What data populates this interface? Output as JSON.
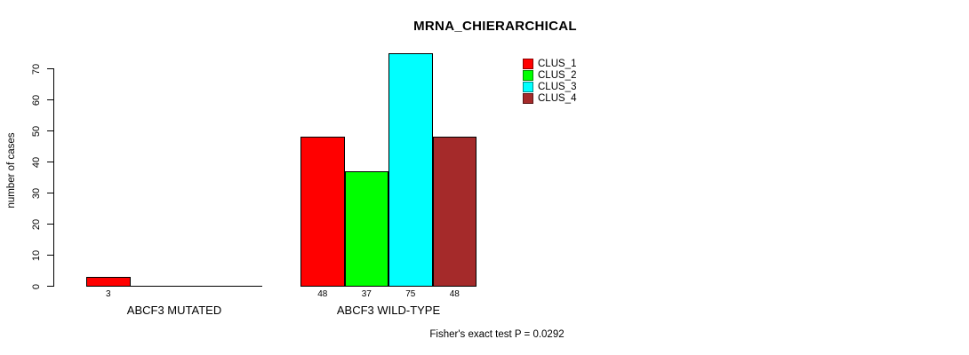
{
  "chart_data": {
    "type": "bar",
    "title": "MRNA_CHIERARCHICAL",
    "ylabel": "number of cases",
    "xlabel": "",
    "footnote": "Fisher's exact test P = 0.0292",
    "yticks": [
      0,
      10,
      20,
      30,
      40,
      50,
      60,
      70
    ],
    "ylim": [
      0,
      75
    ],
    "grid": false,
    "legend_position": "top-right",
    "series": [
      {
        "name": "CLUS_1",
        "color": "#FF0000"
      },
      {
        "name": "CLUS_2",
        "color": "#00FF00"
      },
      {
        "name": "CLUS_3",
        "color": "#00FFFF"
      },
      {
        "name": "CLUS_4",
        "color": "#A52A2A"
      }
    ],
    "groups": [
      {
        "label": "ABCF3 MUTATED",
        "values": [
          3,
          0,
          0,
          0
        ]
      },
      {
        "label": "ABCF3 WILD-TYPE",
        "values": [
          48,
          37,
          75,
          48
        ]
      }
    ]
  }
}
